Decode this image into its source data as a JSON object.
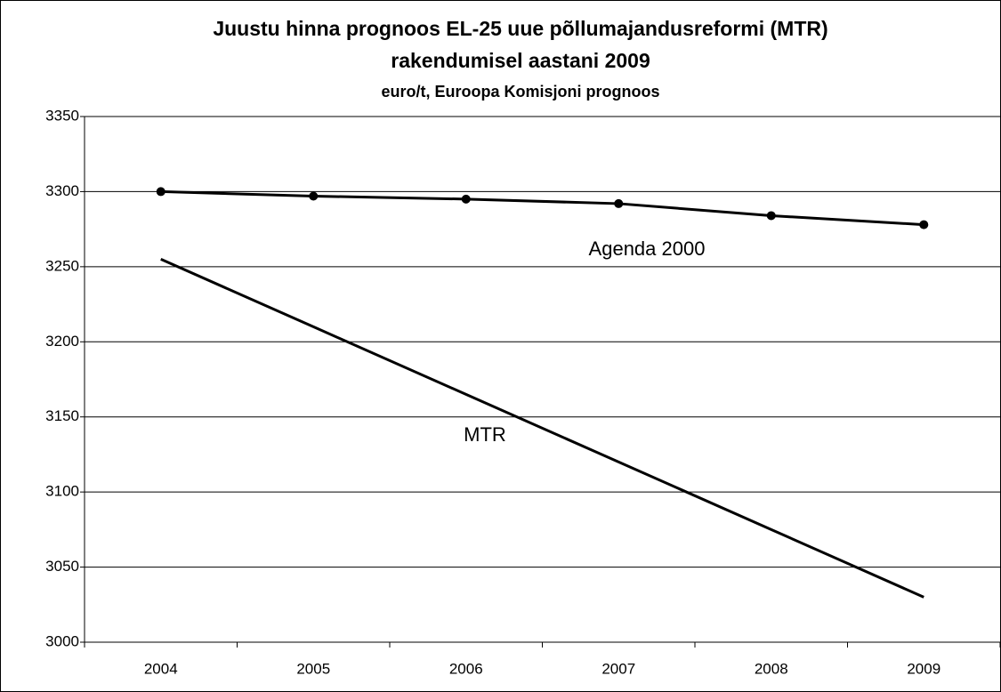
{
  "chart_data": {
    "type": "line",
    "title": [
      "Juustu hinna prognoos EL-25 uue põllumajandusreformi (MTR)",
      "rakendumisel aastani 2009"
    ],
    "subtitle": "euro/t, Euroopa Komisjoni prognoos",
    "categories": [
      "2004",
      "2005",
      "2006",
      "2007",
      "2008",
      "2009"
    ],
    "series": [
      {
        "name": "Agenda 2000",
        "color": "#000000",
        "markers": true,
        "values": [
          3300,
          3297,
          3295,
          3292,
          3284,
          3278
        ]
      },
      {
        "name": "MTR",
        "color": "#000000",
        "markers": false,
        "values": [
          3255,
          3210,
          3165,
          3120,
          3075,
          3030
        ]
      }
    ],
    "ylim": [
      3000,
      3350
    ],
    "yticks": [
      3000,
      3050,
      3100,
      3150,
      3200,
      3250,
      3300,
      3350
    ],
    "grid": true
  }
}
